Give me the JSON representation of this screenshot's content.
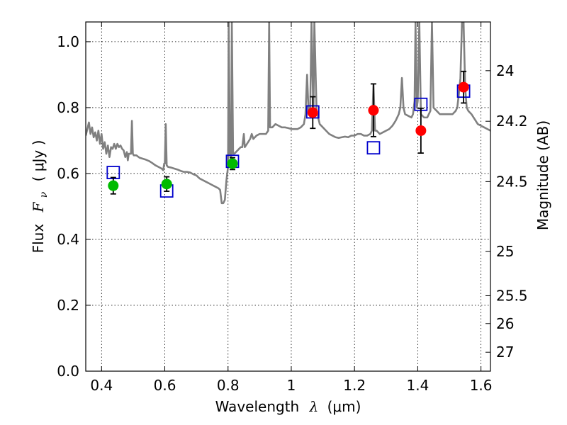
{
  "chart_data": {
    "type": "scatter",
    "xlabel": {
      "prefix": "Wavelength",
      "math": "λ",
      "suffix": "(μm)"
    },
    "ylabel": {
      "prefix": "Flux",
      "math": "F",
      "sub": "ν",
      "unit": "( μJy )"
    },
    "ylabel_right": "Magnitude (AB)",
    "xlim": [
      0.35,
      1.63
    ],
    "ylim": [
      0.0,
      1.06
    ],
    "x_ticks": [
      {
        "value": 0.4,
        "label": "0.4"
      },
      {
        "value": 0.6,
        "label": "0.6"
      },
      {
        "value": 0.8,
        "label": "0.8"
      },
      {
        "value": 1.0,
        "label": "1"
      },
      {
        "value": 1.2,
        "label": "1.2"
      },
      {
        "value": 1.4,
        "label": "1.4"
      },
      {
        "value": 1.6,
        "label": "1.6"
      }
    ],
    "y_ticks": [
      {
        "value": 0.0,
        "label": "0.0"
      },
      {
        "value": 0.2,
        "label": "0.2"
      },
      {
        "value": 0.4,
        "label": "0.4"
      },
      {
        "value": 0.6,
        "label": "0.6"
      },
      {
        "value": 0.8,
        "label": "0.8"
      },
      {
        "value": 1.0,
        "label": "1.0"
      }
    ],
    "right_ticks": [
      {
        "label": "24",
        "mag": 24.0
      },
      {
        "label": "24.2",
        "mag": 24.2
      },
      {
        "label": "24.5",
        "mag": 24.5
      },
      {
        "label": "25",
        "mag": 25.0
      },
      {
        "label": "25.5",
        "mag": 25.5
      },
      {
        "label": "26",
        "mag": 26.0
      },
      {
        "label": "27",
        "mag": 27.0
      }
    ],
    "grid": true,
    "colors": {
      "template": "#808080",
      "optical": "#00bb00",
      "nir": "#ff0000",
      "model": "#0000cc",
      "error": "#000000"
    },
    "series": [
      {
        "kind": "line",
        "points": [
          [
            0.35,
            0.715
          ],
          [
            0.36,
            0.755
          ],
          [
            0.365,
            0.72
          ],
          [
            0.37,
            0.74
          ],
          [
            0.375,
            0.71
          ],
          [
            0.38,
            0.725
          ],
          [
            0.385,
            0.7
          ],
          [
            0.39,
            0.73
          ],
          [
            0.395,
            0.69
          ],
          [
            0.4,
            0.72
          ],
          [
            0.405,
            0.675
          ],
          [
            0.41,
            0.695
          ],
          [
            0.415,
            0.66
          ],
          [
            0.42,
            0.685
          ],
          [
            0.425,
            0.65
          ],
          [
            0.43,
            0.68
          ],
          [
            0.435,
            0.675
          ],
          [
            0.44,
            0.69
          ],
          [
            0.445,
            0.675
          ],
          [
            0.45,
            0.69
          ],
          [
            0.455,
            0.68
          ],
          [
            0.46,
            0.685
          ],
          [
            0.465,
            0.675
          ],
          [
            0.47,
            0.67
          ],
          [
            0.475,
            0.65
          ],
          [
            0.48,
            0.665
          ],
          [
            0.483,
            0.64
          ],
          [
            0.486,
            0.66
          ],
          [
            0.49,
            0.66
          ],
          [
            0.493,
            0.66
          ],
          [
            0.496,
            0.76
          ],
          [
            0.499,
            0.66
          ],
          [
            0.502,
            0.655
          ],
          [
            0.51,
            0.655
          ],
          [
            0.52,
            0.648
          ],
          [
            0.53,
            0.645
          ],
          [
            0.54,
            0.642
          ],
          [
            0.55,
            0.638
          ],
          [
            0.56,
            0.632
          ],
          [
            0.57,
            0.625
          ],
          [
            0.58,
            0.62
          ],
          [
            0.59,
            0.615
          ],
          [
            0.595,
            0.61
          ],
          [
            0.598,
            0.63
          ],
          [
            0.6,
            0.63
          ],
          [
            0.603,
            0.75
          ],
          [
            0.606,
            0.625
          ],
          [
            0.61,
            0.62
          ],
          [
            0.62,
            0.618
          ],
          [
            0.63,
            0.615
          ],
          [
            0.64,
            0.612
          ],
          [
            0.65,
            0.608
          ],
          [
            0.66,
            0.605
          ],
          [
            0.67,
            0.605
          ],
          [
            0.68,
            0.603
          ],
          [
            0.69,
            0.598
          ],
          [
            0.7,
            0.594
          ],
          [
            0.71,
            0.585
          ],
          [
            0.72,
            0.58
          ],
          [
            0.73,
            0.575
          ],
          [
            0.74,
            0.57
          ],
          [
            0.75,
            0.565
          ],
          [
            0.76,
            0.56
          ],
          [
            0.77,
            0.555
          ],
          [
            0.775,
            0.55
          ],
          [
            0.78,
            0.51
          ],
          [
            0.785,
            0.51
          ],
          [
            0.79,
            0.52
          ],
          [
            0.795,
            0.58
          ],
          [
            0.8,
            0.62
          ],
          [
            0.802,
            1.06
          ],
          [
            0.806,
            0.66
          ],
          [
            0.81,
            0.64
          ],
          [
            0.812,
            1.06
          ],
          [
            0.816,
            0.66
          ],
          [
            0.82,
            0.66
          ],
          [
            0.825,
            0.665
          ],
          [
            0.83,
            0.67
          ],
          [
            0.835,
            0.675
          ],
          [
            0.84,
            0.68
          ],
          [
            0.845,
            0.68
          ],
          [
            0.85,
            0.72
          ],
          [
            0.853,
            0.68
          ],
          [
            0.86,
            0.69
          ],
          [
            0.87,
            0.705
          ],
          [
            0.875,
            0.72
          ],
          [
            0.88,
            0.705
          ],
          [
            0.89,
            0.715
          ],
          [
            0.9,
            0.72
          ],
          [
            0.91,
            0.72
          ],
          [
            0.92,
            0.72
          ],
          [
            0.927,
            0.73
          ],
          [
            0.93,
            1.06
          ],
          [
            0.933,
            0.74
          ],
          [
            0.94,
            0.74
          ],
          [
            0.95,
            0.75
          ],
          [
            0.96,
            0.745
          ],
          [
            0.97,
            0.74
          ],
          [
            0.98,
            0.74
          ],
          [
            0.99,
            0.738
          ],
          [
            1.0,
            0.735
          ],
          [
            1.01,
            0.735
          ],
          [
            1.02,
            0.735
          ],
          [
            1.03,
            0.74
          ],
          [
            1.04,
            0.75
          ],
          [
            1.045,
            0.78
          ],
          [
            1.05,
            0.9
          ],
          [
            1.055,
            0.78
          ],
          [
            1.06,
            0.8
          ],
          [
            1.064,
            1.06
          ],
          [
            1.07,
            0.77
          ],
          [
            1.073,
            1.06
          ],
          [
            1.08,
            0.79
          ],
          [
            1.09,
            0.75
          ],
          [
            1.1,
            0.74
          ],
          [
            1.11,
            0.73
          ],
          [
            1.12,
            0.72
          ],
          [
            1.13,
            0.715
          ],
          [
            1.14,
            0.71
          ],
          [
            1.15,
            0.708
          ],
          [
            1.16,
            0.71
          ],
          [
            1.17,
            0.712
          ],
          [
            1.18,
            0.71
          ],
          [
            1.19,
            0.715
          ],
          [
            1.2,
            0.715
          ],
          [
            1.21,
            0.72
          ],
          [
            1.22,
            0.72
          ],
          [
            1.23,
            0.715
          ],
          [
            1.24,
            0.715
          ],
          [
            1.25,
            0.72
          ],
          [
            1.255,
            0.73
          ],
          [
            1.26,
            0.87
          ],
          [
            1.265,
            0.73
          ],
          [
            1.27,
            0.73
          ],
          [
            1.28,
            0.72
          ],
          [
            1.29,
            0.725
          ],
          [
            1.3,
            0.73
          ],
          [
            1.31,
            0.735
          ],
          [
            1.32,
            0.745
          ],
          [
            1.33,
            0.76
          ],
          [
            1.34,
            0.78
          ],
          [
            1.345,
            0.8
          ],
          [
            1.35,
            0.89
          ],
          [
            1.355,
            0.8
          ],
          [
            1.36,
            0.78
          ],
          [
            1.37,
            0.775
          ],
          [
            1.38,
            0.77
          ],
          [
            1.385,
            0.78
          ],
          [
            1.39,
            0.82
          ],
          [
            1.393,
            1.06
          ],
          [
            1.397,
            0.8
          ],
          [
            1.4,
            0.82
          ],
          [
            1.405,
            1.06
          ],
          [
            1.41,
            0.78
          ],
          [
            1.42,
            0.77
          ],
          [
            1.43,
            0.77
          ],
          [
            1.44,
            0.79
          ],
          [
            1.445,
            1.06
          ],
          [
            1.45,
            0.8
          ],
          [
            1.46,
            0.79
          ],
          [
            1.47,
            0.78
          ],
          [
            1.48,
            0.78
          ],
          [
            1.49,
            0.78
          ],
          [
            1.5,
            0.78
          ],
          [
            1.51,
            0.78
          ],
          [
            1.52,
            0.79
          ],
          [
            1.525,
            0.8
          ],
          [
            1.53,
            0.84
          ],
          [
            1.535,
            0.89
          ],
          [
            1.54,
            1.06
          ],
          [
            1.545,
            1.06
          ],
          [
            1.55,
            0.86
          ],
          [
            1.555,
            0.8
          ],
          [
            1.56,
            0.79
          ],
          [
            1.57,
            0.78
          ],
          [
            1.58,
            0.765
          ],
          [
            1.59,
            0.75
          ],
          [
            1.6,
            0.745
          ],
          [
            1.61,
            0.74
          ],
          [
            1.62,
            0.735
          ],
          [
            1.63,
            0.73
          ]
        ]
      },
      {
        "kind": "errorbar",
        "marker": "circle",
        "points": [
          {
            "x": 0.437,
            "y": 0.563,
            "err": 0.025
          },
          {
            "x": 0.606,
            "y": 0.568,
            "err": 0.022
          },
          {
            "x": 0.814,
            "y": 0.63,
            "err": 0.018
          }
        ]
      },
      {
        "kind": "errorbar",
        "marker": "circle",
        "points": [
          {
            "x": 1.068,
            "y": 0.785,
            "err": 0.048
          },
          {
            "x": 1.26,
            "y": 0.792,
            "err": 0.08
          },
          {
            "x": 1.41,
            "y": 0.73,
            "err": 0.068
          },
          {
            "x": 1.545,
            "y": 0.862,
            "err": 0.048
          }
        ]
      },
      {
        "kind": "marker",
        "marker": "square",
        "points": [
          {
            "x": 0.437,
            "y": 0.603
          },
          {
            "x": 0.606,
            "y": 0.547
          },
          {
            "x": 0.814,
            "y": 0.637
          },
          {
            "x": 1.068,
            "y": 0.787
          },
          {
            "x": 1.26,
            "y": 0.678
          },
          {
            "x": 1.41,
            "y": 0.81
          },
          {
            "x": 1.545,
            "y": 0.85
          }
        ]
      }
    ]
  }
}
